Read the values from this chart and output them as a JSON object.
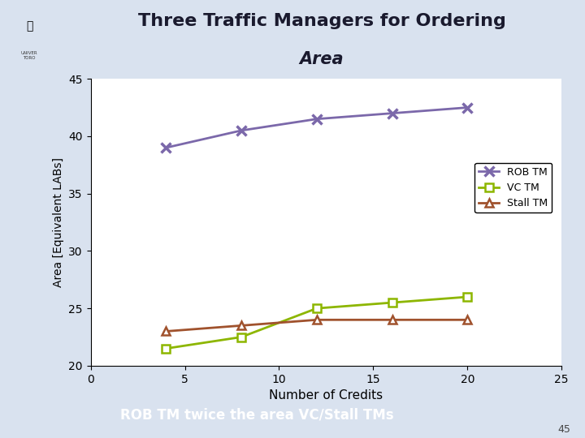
{
  "title_line1": "Three Traffic Managers for Ordering",
  "title_line2": "Area",
  "xlabel": "Number of Credits",
  "ylabel": "Area [Equivalent LABs]",
  "xlim": [
    0,
    25
  ],
  "ylim": [
    20,
    45
  ],
  "xticks": [
    0,
    5,
    10,
    15,
    20,
    25
  ],
  "yticks": [
    20,
    25,
    30,
    35,
    40,
    45
  ],
  "x_values": [
    4,
    8,
    12,
    16,
    20
  ],
  "rob_tm": [
    39.0,
    40.5,
    41.5,
    42.0,
    42.5
  ],
  "vc_tm": [
    21.5,
    22.5,
    25.0,
    25.5,
    26.0
  ],
  "stall_tm": [
    23.0,
    23.5,
    24.0,
    24.0,
    24.0
  ],
  "rob_color": "#7B68AA",
  "vc_color": "#8DB600",
  "stall_color": "#A0522D",
  "header_bg": "#BDD0E9",
  "footer_bg": "#4472C4",
  "footer_text": "ROB TM twice the area VC/Stall TMs",
  "footer_text_color": "#FFFFFF",
  "plot_bg": "#FFFFFF",
  "slide_bg": "#D9E2EF",
  "logo_bg": "#BDD0E9",
  "slide_number": "45",
  "legend_labels": [
    "ROB TM",
    "VC TM",
    "Stall TM"
  ]
}
